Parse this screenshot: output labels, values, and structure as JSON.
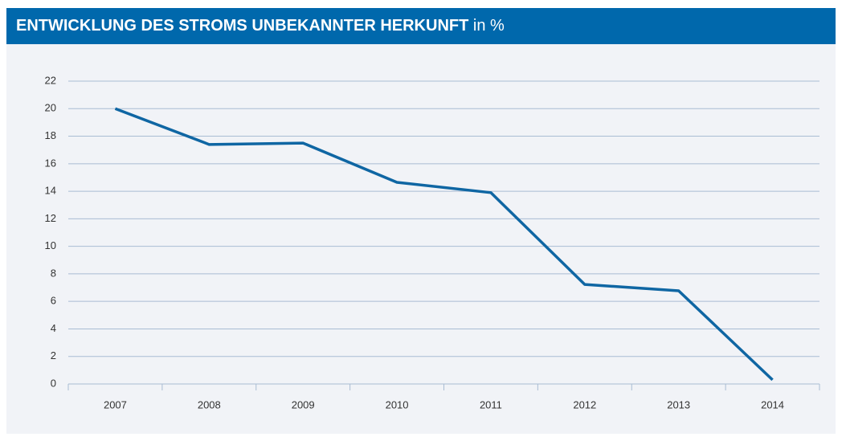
{
  "chart_data": {
    "type": "line",
    "title": "ENTWICKLUNG DES STROMS UNBEKANNTER HERKUNFT",
    "unit": "in %",
    "categories": [
      "2007",
      "2008",
      "2009",
      "2010",
      "2011",
      "2012",
      "2013",
      "2014"
    ],
    "series": [
      {
        "name": "Strom unbekannter Herkunft",
        "color": "#0f66a3",
        "values": [
          20.0,
          17.4,
          17.5,
          14.65,
          13.9,
          7.23,
          6.77,
          0.3
        ]
      }
    ],
    "ylim": [
      0,
      22
    ],
    "yticks": [
      0,
      2,
      4,
      6,
      8,
      10,
      12,
      14,
      16,
      18,
      20,
      22
    ],
    "grid": true,
    "legend": false
  }
}
